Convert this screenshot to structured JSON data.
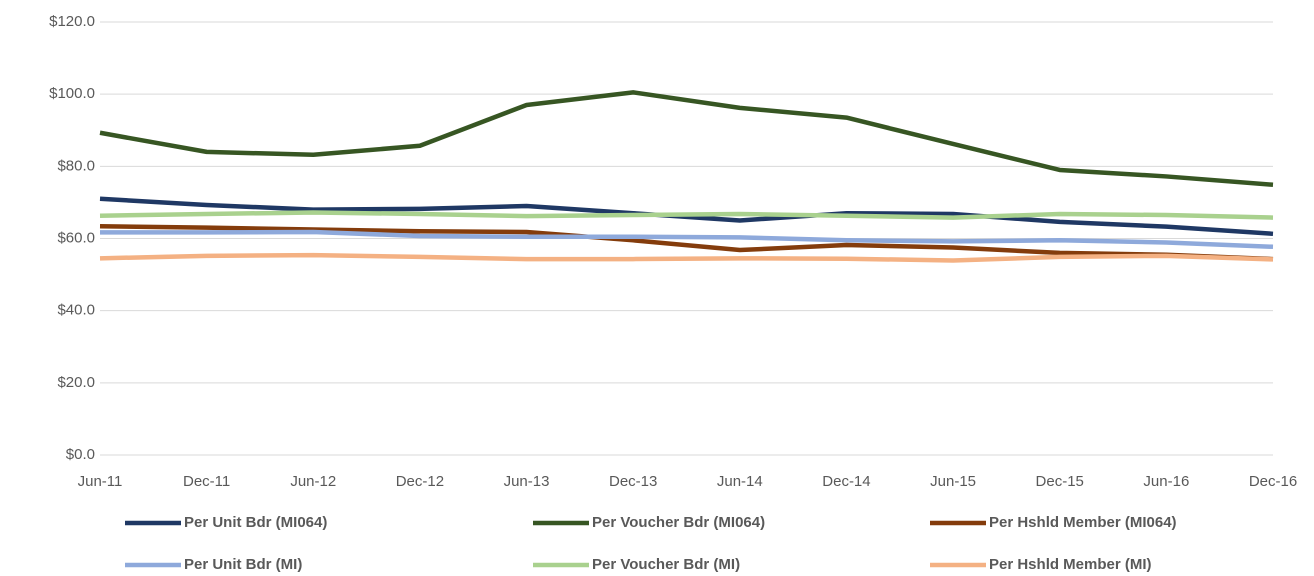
{
  "chart_data": {
    "type": "line",
    "categories": [
      "Jun-11",
      "Dec-11",
      "Jun-12",
      "Dec-12",
      "Jun-13",
      "Dec-13",
      "Jun-14",
      "Dec-14",
      "Jun-15",
      "Dec-15",
      "Jun-16",
      "Dec-16"
    ],
    "series": [
      {
        "name": "Per Unit Bdr (MI064)",
        "color": "#1f3864",
        "values": [
          71,
          69.3,
          68,
          68.2,
          69,
          67,
          65,
          67,
          66.8,
          64.6,
          63.3,
          61.3
        ]
      },
      {
        "name": "Per Voucher Bdr (MI064)",
        "color": "#375623",
        "values": [
          89.3,
          84,
          83.2,
          85.7,
          97,
          100.5,
          96.2,
          93.5,
          86.2,
          79,
          77.2,
          74.9
        ]
      },
      {
        "name": "Per Hshld Member (MI064)",
        "color": "#843c0c",
        "values": [
          63.4,
          63,
          62.5,
          62,
          61.8,
          59.5,
          56.8,
          58.2,
          57.5,
          56,
          55.5,
          54.3
        ]
      },
      {
        "name": "Per Unit Bdr (MI)",
        "color": "#8ea9db",
        "values": [
          61.7,
          61.7,
          61.8,
          60.7,
          60.5,
          60.5,
          60.3,
          59.5,
          59.2,
          59.5,
          58.9,
          57.7
        ]
      },
      {
        "name": "Per Voucher Bdr (MI)",
        "color": "#a9d18e",
        "values": [
          66.3,
          66.8,
          67.2,
          66.8,
          66.2,
          66.5,
          66.8,
          66.3,
          65.8,
          66.8,
          66.5,
          65.8
        ]
      },
      {
        "name": "Per Hshld Member (MI)",
        "color": "#f4b183",
        "values": [
          54.5,
          55.2,
          55.4,
          54.9,
          54.3,
          54.3,
          54.5,
          54.4,
          53.9,
          54.9,
          55.2,
          54.2
        ]
      }
    ],
    "ylim": [
      0,
      120
    ],
    "yticks": [
      {
        "value": 0,
        "label": "$0.0"
      },
      {
        "value": 20,
        "label": "$20.0"
      },
      {
        "value": 40,
        "label": "$40.0"
      },
      {
        "value": 60,
        "label": "$60.0"
      },
      {
        "value": 80,
        "label": "$80.0"
      },
      {
        "value": 100,
        "label": "$100.0"
      },
      {
        "value": 120,
        "label": "$120.0"
      }
    ],
    "grid": true,
    "legend": "bottom"
  }
}
